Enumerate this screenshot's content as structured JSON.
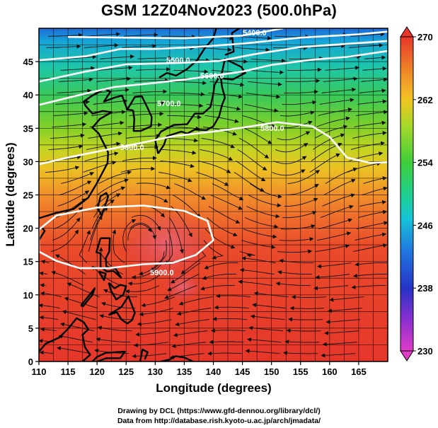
{
  "title": "GSM 12Z04Nov2023 (500.0hPa)",
  "xlabel": "Longitude (degrees)",
  "ylabel": "Latitude  (degrees)",
  "x_ticks": [
    "110",
    "115",
    "120",
    "125",
    "130",
    "135",
    "140",
    "145",
    "150",
    "155",
    "160",
    "165"
  ],
  "y_ticks": [
    "0",
    "5",
    "10",
    "15",
    "20",
    "25",
    "30",
    "35",
    "40",
    "45"
  ],
  "colorbar_ticks": [
    "230",
    "238",
    "246",
    "254",
    "262",
    "270"
  ],
  "contour_labels": [
    "5400.0",
    "5500.0",
    "5600.0",
    "5700.0",
    "5800.0",
    "5800.0",
    "5900.0"
  ],
  "footer": {
    "line1": "Drawing by DCL (https://www.gfd-dennou.org/library/dcl/)",
    "line2": "Data from http://database.rish.kyoto-u.ac.jp/arch/jmadata/"
  },
  "chart_data": {
    "type": "heatmap",
    "title": "GSM 12Z04Nov2023 (500.0hPa)",
    "xlabel": "Longitude (degrees)",
    "ylabel": "Latitude  (degrees)",
    "xlim": [
      110,
      170
    ],
    "ylim": [
      0,
      50
    ],
    "grid": true,
    "colorbar": {
      "min": 230,
      "max": 270,
      "ticks": [
        230,
        238,
        246,
        254,
        262,
        270
      ]
    },
    "contours": [
      {
        "label": "5400.0",
        "points": [
          [
            115,
            48.7
          ],
          [
            125,
            48.6
          ],
          [
            135,
            48.5
          ],
          [
            145,
            48.9
          ],
          [
            152,
            50
          ]
        ]
      },
      {
        "label": "5500.0",
        "points": [
          [
            110,
            45.2
          ],
          [
            118,
            45.8
          ],
          [
            124,
            46.9
          ],
          [
            130,
            46.9
          ],
          [
            137,
            47.2
          ],
          [
            145,
            47.7
          ],
          [
            155,
            48.6
          ],
          [
            165,
            49.1
          ],
          [
            170,
            49.5
          ]
        ]
      },
      {
        "label": "5600.0",
        "points": [
          [
            110,
            42
          ],
          [
            118,
            43.5
          ],
          [
            125,
            44.6
          ],
          [
            134,
            44.8
          ],
          [
            141,
            45.1
          ],
          [
            147,
            46.1
          ],
          [
            155,
            47.2
          ],
          [
            162,
            47.6
          ],
          [
            170,
            48.1
          ]
        ]
      },
      {
        "label": "5700.0",
        "points": [
          [
            110,
            38.5
          ],
          [
            117,
            40
          ],
          [
            123,
            41.2
          ],
          [
            130,
            41.8
          ],
          [
            135,
            42.3
          ],
          [
            140,
            42.9
          ],
          [
            145,
            43.5
          ],
          [
            150,
            44.5
          ],
          [
            157,
            45.3
          ],
          [
            163,
            45.7
          ],
          [
            170,
            46.6
          ]
        ]
      },
      {
        "label": "5800.0",
        "points": [
          [
            110,
            29.6
          ],
          [
            115,
            30.6
          ],
          [
            120,
            31.5
          ],
          [
            127,
            32.7
          ],
          [
            133,
            33.8
          ],
          [
            140,
            34.5
          ],
          [
            145,
            35.1
          ],
          [
            151,
            35.9
          ],
          [
            157,
            35.3
          ],
          [
            160,
            33.7
          ],
          [
            163,
            30.6
          ],
          [
            167,
            29.8
          ],
          [
            170,
            29.9
          ]
        ]
      },
      {
        "label": "5900.0",
        "points": [
          [
            110,
            16.5
          ],
          [
            113,
            15.1
          ],
          [
            117,
            14
          ],
          [
            122,
            14
          ],
          [
            128,
            14.6
          ],
          [
            133,
            14.8
          ],
          [
            137,
            16
          ],
          [
            140,
            18.2
          ],
          [
            139,
            21.1
          ],
          [
            135,
            22.6
          ],
          [
            128,
            23.4
          ],
          [
            120,
            23.1
          ],
          [
            113,
            21.9
          ],
          [
            110,
            19.8
          ]
        ]
      }
    ],
    "coastlines": [
      {
        "name": "Japan",
        "points": [
          [
            130.5,
            31.2
          ],
          [
            131.5,
            32.5
          ],
          [
            132,
            33.8
          ],
          [
            134.5,
            34.5
          ],
          [
            135.5,
            34.2
          ],
          [
            136.8,
            34.8
          ],
          [
            138.8,
            34.7
          ],
          [
            140,
            35.3
          ],
          [
            141,
            36.8
          ],
          [
            141.5,
            38.5
          ],
          [
            142,
            39.6
          ],
          [
            141.5,
            41.2
          ],
          [
            141.3,
            42.5
          ],
          [
            143.3,
            42.3
          ],
          [
            145.5,
            43.3
          ],
          [
            144.8,
            44.2
          ],
          [
            142,
            45.4
          ],
          [
            141.5,
            43.4
          ],
          [
            140.2,
            41.5
          ],
          [
            140,
            40.2
          ],
          [
            139.5,
            38.2
          ],
          [
            138.2,
            37.2
          ],
          [
            136.8,
            37.2
          ],
          [
            135.5,
            35.6
          ],
          [
            133.2,
            35.5
          ],
          [
            131,
            34.5
          ],
          [
            130,
            33.2
          ],
          [
            130.5,
            31.2
          ]
        ]
      },
      {
        "name": "Korea",
        "points": [
          [
            126.2,
            37.7
          ],
          [
            126.4,
            36.4
          ],
          [
            126.3,
            34.6
          ],
          [
            127.5,
            34.6
          ],
          [
            129.3,
            35.3
          ],
          [
            129.4,
            36.7
          ],
          [
            128.5,
            38.4
          ],
          [
            127.7,
            39.8
          ],
          [
            126.5,
            39.7
          ],
          [
            125.2,
            37.8
          ],
          [
            126.2,
            37.7
          ]
        ]
      },
      {
        "name": "China coast",
        "points": [
          [
            110,
            21.5
          ],
          [
            113,
            22.3
          ],
          [
            116,
            22.9
          ],
          [
            118.5,
            24.6
          ],
          [
            120,
            26.8
          ],
          [
            121.8,
            29.8
          ],
          [
            121.9,
            31.4
          ],
          [
            120.3,
            34.2
          ],
          [
            119.2,
            35.1
          ],
          [
            120.5,
            36.4
          ],
          [
            122.5,
            37.4
          ],
          [
            121,
            37.6
          ],
          [
            119.2,
            37.2
          ],
          [
            118,
            38.4
          ],
          [
            117.7,
            39
          ],
          [
            119,
            39.8
          ],
          [
            121.3,
            40.9
          ],
          [
            122.3,
            40.5
          ],
          [
            121.2,
            39
          ],
          [
            123,
            39.6
          ],
          [
            124.3,
            39.9
          ],
          [
            125.2,
            37.8
          ]
        ]
      },
      {
        "name": "Russian coast",
        "points": [
          [
            130.7,
            42.6
          ],
          [
            132,
            43.3
          ],
          [
            133.6,
            42.9
          ],
          [
            135.5,
            43.9
          ],
          [
            137.2,
            45.2
          ],
          [
            138.5,
            47
          ],
          [
            140,
            48.5
          ],
          [
            140.5,
            50
          ]
        ]
      },
      {
        "name": "Sakhalin",
        "points": [
          [
            142,
            46
          ],
          [
            143.5,
            46.5
          ],
          [
            143.2,
            49.3
          ],
          [
            144.5,
            50
          ]
        ]
      },
      {
        "name": "Taiwan",
        "points": [
          [
            120.1,
            23
          ],
          [
            120.8,
            21.9
          ],
          [
            121.9,
            24.7
          ],
          [
            121.6,
            25.3
          ],
          [
            120.6,
            24.8
          ],
          [
            120.1,
            23
          ]
        ]
      },
      {
        "name": "Hainan",
        "points": [
          [
            108.6,
            19.2
          ],
          [
            110.5,
            20.1
          ],
          [
            111,
            19.6
          ],
          [
            110,
            18.2
          ],
          [
            108.6,
            19.2
          ]
        ]
      },
      {
        "name": "Luzon",
        "points": [
          [
            120.6,
            18.5
          ],
          [
            122.2,
            18.5
          ],
          [
            122.1,
            16.5
          ],
          [
            121.5,
            15.5
          ],
          [
            121.6,
            14.2
          ],
          [
            123.2,
            13.9
          ],
          [
            124.1,
            12.6
          ],
          [
            122.8,
            13.6
          ],
          [
            121.7,
            13.5
          ],
          [
            120.6,
            14.2
          ],
          [
            120.6,
            16.2
          ],
          [
            119.9,
            16.4
          ],
          [
            120.6,
            18.5
          ]
        ]
      },
      {
        "name": "Mindoro",
        "points": [
          [
            120.3,
            13.5
          ],
          [
            121.5,
            13.2
          ],
          [
            121.2,
            12.2
          ],
          [
            120.3,
            13.5
          ]
        ]
      },
      {
        "name": "Visayas",
        "points": [
          [
            122,
            11.8
          ],
          [
            123,
            11
          ],
          [
            124,
            11.5
          ],
          [
            125,
            11.3
          ],
          [
            124.5,
            10
          ],
          [
            123.3,
            9.3
          ],
          [
            122.4,
            10.6
          ],
          [
            122,
            11.8
          ]
        ]
      },
      {
        "name": "Palawan",
        "points": [
          [
            117.2,
            8.4
          ],
          [
            118.8,
            10.1
          ],
          [
            119.6,
            11
          ],
          [
            119.2,
            10
          ],
          [
            117.6,
            8.3
          ],
          [
            117.2,
            8.4
          ]
        ]
      },
      {
        "name": "Mindanao",
        "points": [
          [
            122,
            7
          ],
          [
            123.5,
            7.8
          ],
          [
            124.2,
            8.2
          ],
          [
            125.4,
            9.8
          ],
          [
            126.5,
            7.3
          ],
          [
            126,
            6.2
          ],
          [
            125.2,
            5.7
          ],
          [
            124.2,
            6.3
          ],
          [
            123.4,
            7.4
          ],
          [
            122,
            7
          ]
        ]
      },
      {
        "name": "Borneo",
        "points": [
          [
            110,
            1.5
          ],
          [
            111.2,
            2.7
          ],
          [
            113.5,
            3.6
          ],
          [
            115,
            4.9
          ],
          [
            116.5,
            6.5
          ],
          [
            117.7,
            5.9
          ],
          [
            118.5,
            4.8
          ],
          [
            117.5,
            4
          ],
          [
            117.9,
            2.2
          ],
          [
            118.8,
            1
          ],
          [
            117.5,
            0
          ]
        ]
      },
      {
        "name": "Sulawesi",
        "points": [
          [
            119.2,
            0
          ],
          [
            120,
            0.7
          ],
          [
            121.5,
            1.3
          ],
          [
            124.8,
            1.5
          ],
          [
            124,
            0.5
          ],
          [
            121.6,
            0.5
          ],
          [
            120.1,
            0
          ]
        ]
      },
      {
        "name": "Halmahera",
        "points": [
          [
            127.4,
            0
          ],
          [
            127.8,
            1.8
          ],
          [
            128.7,
            1.4
          ],
          [
            128.2,
            0.3
          ]
        ]
      },
      {
        "name": "New Guinea",
        "points": [
          [
            131,
            0
          ],
          [
            132.5,
            0.3
          ],
          [
            133.5,
            0.8
          ],
          [
            135,
            0.6
          ],
          [
            136.5,
            0
          ]
        ]
      }
    ]
  }
}
